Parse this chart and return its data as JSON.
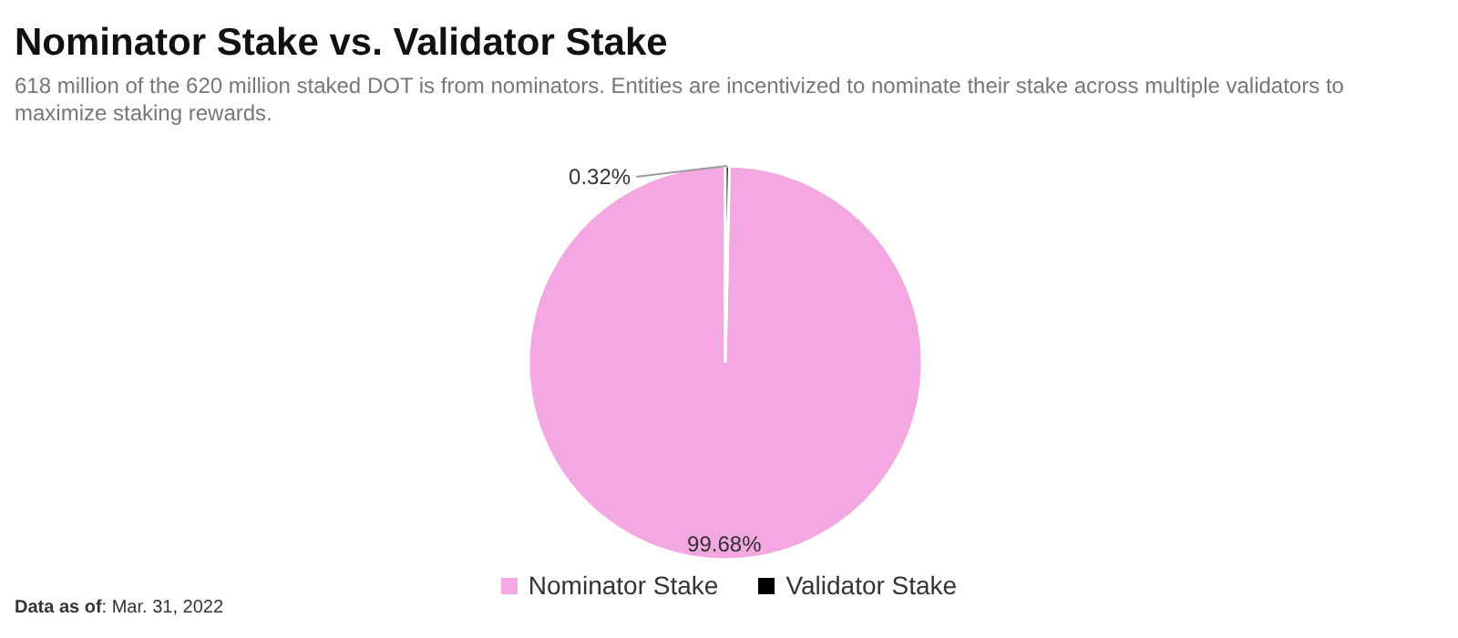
{
  "chart_data": {
    "type": "pie",
    "title": "Nominator Stake vs. Validator Stake",
    "subtitle": "618 million of the 620 million staked DOT is from nominators. Entities are incentivized to nominate their stake across multiple validators to maximize staking rewards.",
    "categories": [
      "Nominator Stake",
      "Validator Stake"
    ],
    "values": [
      99.68,
      0.32
    ],
    "colors": [
      "#f4a8e2",
      "#000000"
    ],
    "value_labels": [
      "99.68%",
      "0.32%"
    ],
    "legend": "bottom",
    "annotations": [
      "Data as of: Mar. 31, 2022"
    ]
  }
}
